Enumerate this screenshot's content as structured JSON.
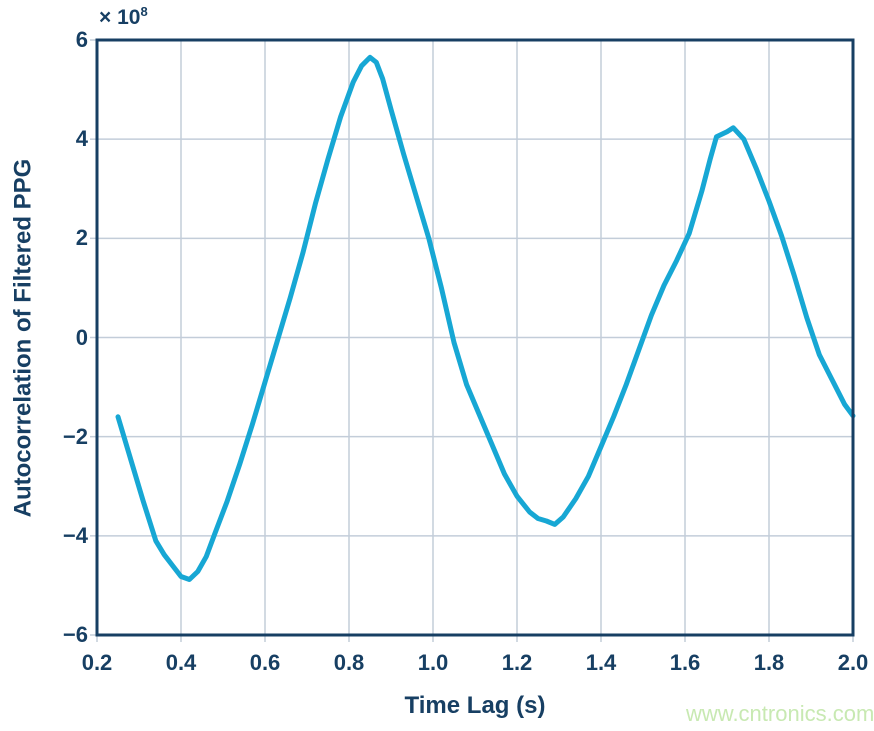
{
  "chart_data": {
    "type": "line",
    "title": "",
    "xlabel": "Time Lag (s)",
    "ylabel": "Autocorrelation of Filtered PPG",
    "y_scale": {
      "base": "× 10",
      "exponent": "8",
      "multiplier": 100000000
    },
    "xlim": [
      0.2,
      2.0
    ],
    "ylim": [
      -6,
      6
    ],
    "grid": true,
    "legend_position": "none",
    "x_tick_values": [
      0.2,
      0.4,
      0.6,
      0.8,
      1.0,
      1.2,
      1.4,
      1.6,
      1.8,
      2.0
    ],
    "x_tick_labels": [
      "0.2",
      "0.4",
      "0.6",
      "0.8",
      "1.0",
      "1.2",
      "1.4",
      "1.6",
      "1.8",
      "2.0"
    ],
    "y_tick_values": [
      6,
      4,
      2,
      0,
      -2,
      -4,
      -6
    ],
    "y_tick_labels": [
      "6",
      "4",
      "2",
      "0",
      "−2",
      "−4",
      "−6"
    ],
    "colors": {
      "line": "#17a7d4",
      "axis_and_text": "#173f63",
      "grid": "#c3cdd9"
    },
    "series": [
      {
        "name": "Autocorrelation of Filtered PPG",
        "units": "×10^8",
        "points": [
          [
            0.25,
            -1.6
          ],
          [
            0.28,
            -2.45
          ],
          [
            0.31,
            -3.3
          ],
          [
            0.34,
            -4.1
          ],
          [
            0.36,
            -4.38
          ],
          [
            0.38,
            -4.6
          ],
          [
            0.4,
            -4.82
          ],
          [
            0.42,
            -4.88
          ],
          [
            0.44,
            -4.72
          ],
          [
            0.46,
            -4.42
          ],
          [
            0.48,
            -3.97
          ],
          [
            0.51,
            -3.3
          ],
          [
            0.54,
            -2.55
          ],
          [
            0.57,
            -1.75
          ],
          [
            0.6,
            -0.9
          ],
          [
            0.63,
            -0.05
          ],
          [
            0.66,
            0.8
          ],
          [
            0.69,
            1.7
          ],
          [
            0.72,
            2.7
          ],
          [
            0.75,
            3.6
          ],
          [
            0.78,
            4.45
          ],
          [
            0.81,
            5.15
          ],
          [
            0.83,
            5.48
          ],
          [
            0.85,
            5.65
          ],
          [
            0.865,
            5.55
          ],
          [
            0.88,
            5.22
          ],
          [
            0.9,
            4.6
          ],
          [
            0.93,
            3.7
          ],
          [
            0.96,
            2.85
          ],
          [
            0.99,
            2.0
          ],
          [
            1.02,
            1.0
          ],
          [
            1.05,
            -0.1
          ],
          [
            1.08,
            -0.95
          ],
          [
            1.11,
            -1.55
          ],
          [
            1.14,
            -2.15
          ],
          [
            1.17,
            -2.75
          ],
          [
            1.2,
            -3.2
          ],
          [
            1.23,
            -3.52
          ],
          [
            1.25,
            -3.65
          ],
          [
            1.27,
            -3.7
          ],
          [
            1.29,
            -3.77
          ],
          [
            1.31,
            -3.62
          ],
          [
            1.34,
            -3.25
          ],
          [
            1.37,
            -2.8
          ],
          [
            1.4,
            -2.2
          ],
          [
            1.43,
            -1.6
          ],
          [
            1.46,
            -0.95
          ],
          [
            1.49,
            -0.25
          ],
          [
            1.52,
            0.45
          ],
          [
            1.55,
            1.05
          ],
          [
            1.58,
            1.55
          ],
          [
            1.61,
            2.1
          ],
          [
            1.64,
            2.95
          ],
          [
            1.66,
            3.6
          ],
          [
            1.675,
            4.05
          ],
          [
            1.7,
            4.15
          ],
          [
            1.715,
            4.23
          ],
          [
            1.74,
            4.0
          ],
          [
            1.77,
            3.4
          ],
          [
            1.8,
            2.75
          ],
          [
            1.83,
            2.05
          ],
          [
            1.86,
            1.25
          ],
          [
            1.89,
            0.4
          ],
          [
            1.92,
            -0.35
          ],
          [
            1.95,
            -0.85
          ],
          [
            1.98,
            -1.35
          ],
          [
            2.0,
            -1.58
          ]
        ]
      }
    ]
  },
  "watermark": {
    "text": "www.cntronics.com",
    "color": "#c8e9b2"
  }
}
